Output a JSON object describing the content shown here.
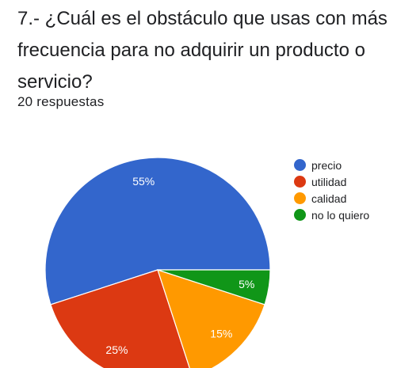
{
  "question": {
    "title": "7.- ¿Cuál es el obstáculo que usas con más frecuencia para no adquirir un producto o servicio?",
    "response_count": "20 respuestas"
  },
  "chart_data": {
    "type": "pie",
    "categories": [
      "precio",
      "utilidad",
      "calidad",
      "no lo quiero"
    ],
    "values": [
      55,
      25,
      15,
      5
    ],
    "labels": [
      "55%",
      "25%",
      "15%",
      "5%"
    ],
    "colors": [
      "#3366cc",
      "#dc3912",
      "#ff9900",
      "#109618"
    ],
    "legend_position": "right"
  }
}
